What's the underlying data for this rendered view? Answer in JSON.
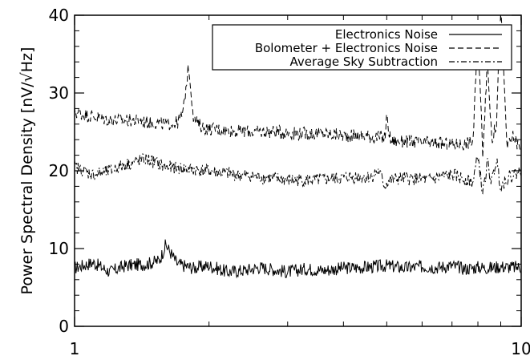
{
  "chart_data": {
    "type": "line",
    "x_scale": "log",
    "xlim": [
      1,
      10
    ],
    "ylim": [
      0,
      40
    ],
    "ylabel": "Power Spectral Density [nV/√Hz]",
    "x_ticks": [
      {
        "value": 1,
        "label": "1"
      },
      {
        "value": 10,
        "label": "10"
      }
    ],
    "y_ticks": [
      {
        "value": 0,
        "label": "0"
      },
      {
        "value": 10,
        "label": "10"
      },
      {
        "value": 20,
        "label": "20"
      },
      {
        "value": 30,
        "label": "30"
      },
      {
        "value": 40,
        "label": "40"
      }
    ],
    "legend_position": "top-right",
    "series": [
      {
        "name": "Electronics Noise",
        "style": "solid",
        "color": "#000000",
        "x": [
          1.0,
          1.1,
          1.2,
          1.3,
          1.45,
          1.55,
          1.6,
          1.7,
          1.85,
          2.0,
          2.2,
          2.4,
          2.6,
          2.8,
          3.0,
          3.3,
          3.6,
          4.0,
          4.5,
          5.0,
          5.5,
          6.0,
          6.5,
          7.0,
          7.5,
          8.0,
          8.5,
          9.0,
          9.5,
          10.0
        ],
        "y": [
          7.5,
          8.2,
          7.0,
          7.8,
          8.0,
          8.5,
          10.5,
          8.0,
          7.5,
          7.8,
          7.0,
          7.2,
          7.6,
          7.3,
          7.0,
          7.4,
          7.2,
          7.5,
          7.6,
          7.8,
          7.5,
          7.7,
          7.6,
          7.8,
          7.4,
          7.6,
          7.5,
          7.7,
          7.6,
          7.6
        ]
      },
      {
        "name": "Bolometer + Electronics Noise",
        "style": "dashed",
        "color": "#000000",
        "x": [
          1.0,
          1.1,
          1.2,
          1.35,
          1.5,
          1.6,
          1.7,
          1.75,
          1.8,
          1.85,
          1.95,
          2.2,
          2.5,
          2.8,
          3.2,
          3.6,
          4.0,
          4.5,
          4.95,
          5.0,
          5.1,
          5.5,
          6.0,
          6.5,
          7.0,
          7.5,
          7.8,
          8.0,
          8.2,
          8.4,
          8.6,
          8.8,
          9.0,
          9.3,
          9.6,
          10.0
        ],
        "y": [
          27.5,
          27.0,
          26.5,
          26.5,
          26.2,
          26.0,
          26.2,
          27.5,
          33.5,
          26.5,
          25.5,
          25.2,
          25.0,
          25.0,
          24.8,
          24.8,
          24.5,
          24.5,
          24.2,
          27.0,
          23.8,
          23.8,
          23.6,
          23.5,
          23.4,
          23.5,
          23.8,
          38.0,
          22.5,
          34.0,
          24.0,
          26.0,
          41.0,
          23.0,
          24.5,
          22.5
        ]
      },
      {
        "name": "Average Sky Subtraction",
        "style": "dashdot",
        "color": "#000000",
        "x": [
          1.0,
          1.1,
          1.2,
          1.3,
          1.45,
          1.6,
          1.8,
          2.0,
          2.3,
          2.6,
          3.0,
          3.4,
          3.8,
          4.2,
          4.6,
          4.8,
          4.95,
          5.0,
          5.1,
          5.4,
          5.8,
          6.2,
          6.6,
          7.0,
          7.4,
          7.8,
          8.0,
          8.2,
          8.4,
          8.6,
          8.8,
          9.0,
          9.3,
          9.6,
          10.0
        ],
        "y": [
          20.5,
          19.5,
          20.0,
          20.8,
          21.5,
          20.5,
          20.2,
          20.0,
          19.5,
          19.2,
          18.8,
          18.8,
          19.0,
          19.2,
          19.2,
          20.0,
          18.0,
          18.5,
          18.8,
          19.0,
          19.0,
          18.8,
          19.2,
          19.5,
          19.0,
          18.5,
          22.0,
          17.0,
          21.0,
          18.5,
          21.5,
          18.0,
          19.0,
          19.5,
          20.0
        ]
      }
    ]
  }
}
